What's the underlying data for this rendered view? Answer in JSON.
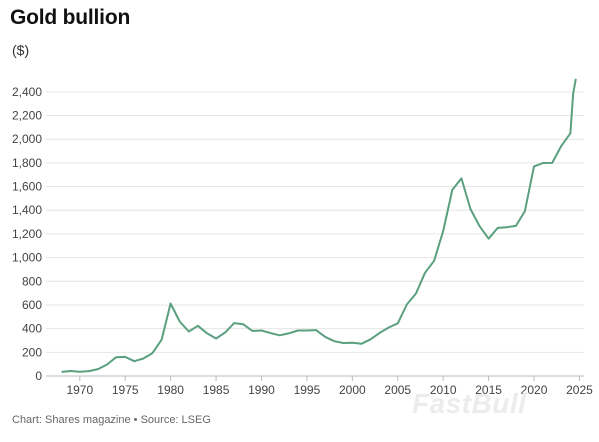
{
  "title": "Gold bullion",
  "unit_label": "($)",
  "source": "Chart: Shares magazine • Source: LSEG",
  "watermark": "FastBull",
  "colors": {
    "line": "#5aa07f",
    "grid": "#e6e6e6",
    "axis": "#bbbbbb"
  },
  "chart_data": {
    "type": "line",
    "title": "Gold bullion",
    "ylabel": "($)",
    "xlabel": "",
    "xlim": [
      1966.5,
      2025.5
    ],
    "ylim": [
      0,
      2500
    ],
    "x_ticks": [
      1970,
      1975,
      1980,
      1985,
      1990,
      1995,
      2000,
      2005,
      2010,
      2015,
      2020,
      2025
    ],
    "y_ticks": [
      0,
      200,
      400,
      600,
      800,
      1000,
      1200,
      1400,
      1600,
      1800,
      2000,
      2200,
      2400
    ],
    "y_tick_labels": [
      "0",
      "200",
      "400",
      "600",
      "800",
      "1,000",
      "1,200",
      "1,400",
      "1,600",
      "1,800",
      "2,000",
      "2,200",
      "2,400"
    ],
    "grid": true,
    "series": [
      {
        "x": [
          1968,
          1969,
          1970,
          1971,
          1972,
          1973,
          1974,
          1975,
          1976,
          1977,
          1978,
          1979,
          1980,
          1981,
          1982,
          1983,
          1984,
          1985,
          1986,
          1987,
          1988,
          1989,
          1990,
          1991,
          1992,
          1993,
          1994,
          1995,
          1996,
          1997,
          1998,
          1999,
          2000,
          2001,
          2002,
          2003,
          2004,
          2005,
          2006,
          2007,
          2008,
          2009,
          2010,
          2011,
          2012,
          2013,
          2014,
          2015,
          2016,
          2017,
          2018,
          2019,
          2020,
          2021,
          2022,
          2023,
          2024,
          2024.3,
          2024.6
        ],
        "values": [
          35,
          42,
          36,
          41,
          58,
          97,
          159,
          161,
          125,
          148,
          193,
          307,
          612,
          460,
          376,
          424,
          361,
          317,
          368,
          447,
          437,
          381,
          384,
          362,
          344,
          360,
          384,
          384,
          388,
          331,
          294,
          279,
          280,
          272,
          310,
          364,
          410,
          445,
          604,
          696,
          872,
          973,
          1225,
          1572,
          1669,
          1411,
          1266,
          1160,
          1251,
          1257,
          1268,
          1393,
          1770,
          1799,
          1800,
          1943,
          2050,
          2380,
          2510
        ]
      }
    ]
  }
}
